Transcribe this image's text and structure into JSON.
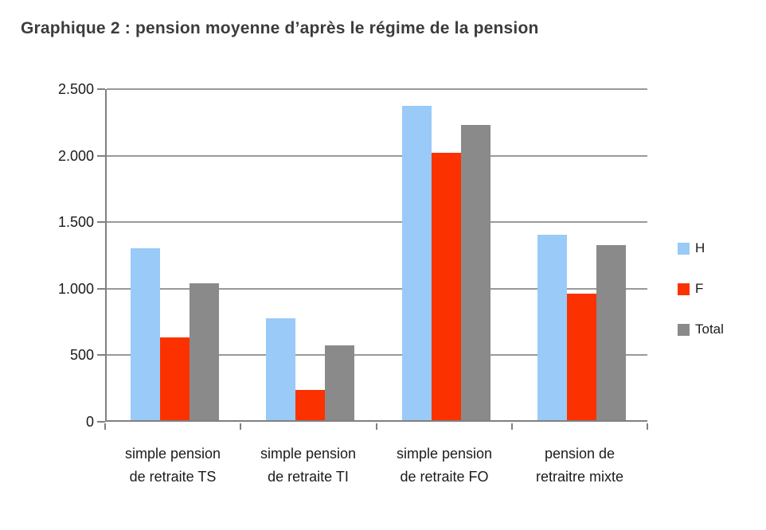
{
  "title": "Graphique 2 : pension moyenne d’après le régime de la pension",
  "chart_data": {
    "type": "bar",
    "title": "Graphique 2 : pension moyenne d’après le régime de la pension",
    "categories": [
      "simple pension\nde retraite TS",
      "simple pension\nde retraite TI",
      "simple pension\nde retraite FO",
      "pension de\nretraitre mixte"
    ],
    "series": [
      {
        "name": "H",
        "color": "#99CAF8",
        "values": [
          1290,
          765,
          2360,
          1395
        ]
      },
      {
        "name": "F",
        "color": "#FB3200",
        "values": [
          620,
          230,
          2010,
          950
        ]
      },
      {
        "name": "Total",
        "color": "#8A8A8A",
        "values": [
          1030,
          565,
          2220,
          1315
        ]
      }
    ],
    "xlabel": "",
    "ylabel": "",
    "ylim": [
      0,
      2500
    ],
    "yticks": [
      {
        "label": "0",
        "value": 0
      },
      {
        "label": "500",
        "value": 500
      },
      {
        "label": "1.000",
        "value": 1000
      },
      {
        "label": "1.500",
        "value": 1500
      },
      {
        "label": "2.000",
        "value": 2000
      },
      {
        "label": "2.500",
        "value": 2500
      }
    ],
    "grid": "horizontal",
    "legend_position": "right",
    "colors": {
      "grid": "#999999",
      "axis": "#808080",
      "text": "#1b1b1b",
      "title": "#3c3c3c",
      "background": "#ffffff"
    }
  }
}
